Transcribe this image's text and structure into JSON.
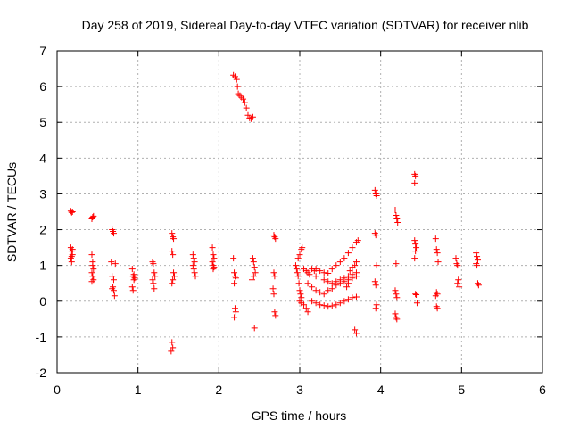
{
  "chart_data": {
    "type": "scatter",
    "title": "Day 258 of 2019, Sidereal Day-to-day VTEC variation (SDTVAR) for receiver nlib",
    "xlabel": "GPS time / hours",
    "ylabel": "SDTVAR / TECUs",
    "xlim": [
      0,
      6
    ],
    "ylim": [
      -2,
      7
    ],
    "xticks": [
      0,
      1,
      2,
      3,
      4,
      5,
      6
    ],
    "yticks": [
      -2,
      -1,
      0,
      1,
      2,
      3,
      4,
      5,
      6,
      7
    ],
    "grid": true,
    "marker": "+",
    "color": "#ff0000",
    "series": [
      {
        "name": "SDTVAR",
        "points": [
          [
            0.17,
            2.52
          ],
          [
            0.18,
            2.48
          ],
          [
            0.19,
            2.5
          ],
          [
            0.17,
            1.5
          ],
          [
            0.18,
            1.4
          ],
          [
            0.19,
            1.3
          ],
          [
            0.17,
            1.2
          ],
          [
            0.18,
            1.1
          ],
          [
            0.19,
            1.45
          ],
          [
            0.18,
            1.25
          ],
          [
            0.43,
            2.3
          ],
          [
            0.44,
            2.35
          ],
          [
            0.45,
            2.38
          ],
          [
            0.43,
            1.3
          ],
          [
            0.44,
            1.1
          ],
          [
            0.45,
            0.9
          ],
          [
            0.43,
            0.8
          ],
          [
            0.44,
            0.7
          ],
          [
            0.45,
            0.6
          ],
          [
            0.43,
            0.55
          ],
          [
            0.44,
            1.0
          ],
          [
            0.68,
            2.0
          ],
          [
            0.69,
            1.95
          ],
          [
            0.7,
            1.9
          ],
          [
            0.67,
            1.1
          ],
          [
            0.68,
            0.7
          ],
          [
            0.69,
            0.4
          ],
          [
            0.7,
            0.3
          ],
          [
            0.71,
            0.15
          ],
          [
            0.72,
            1.05
          ],
          [
            0.7,
            0.6
          ],
          [
            0.68,
            0.35
          ],
          [
            0.93,
            0.9
          ],
          [
            0.94,
            0.7
          ],
          [
            0.95,
            0.6
          ],
          [
            0.93,
            0.4
          ],
          [
            0.94,
            0.3
          ],
          [
            0.95,
            0.75
          ],
          [
            0.96,
            0.65
          ],
          [
            1.18,
            1.1
          ],
          [
            1.19,
            1.05
          ],
          [
            1.2,
            0.8
          ],
          [
            1.21,
            0.7
          ],
          [
            1.18,
            0.6
          ],
          [
            1.19,
            0.5
          ],
          [
            1.2,
            0.35
          ],
          [
            1.42,
            1.9
          ],
          [
            1.43,
            1.8
          ],
          [
            1.44,
            1.75
          ],
          [
            1.42,
            1.4
          ],
          [
            1.43,
            1.3
          ],
          [
            1.44,
            0.8
          ],
          [
            1.45,
            0.7
          ],
          [
            1.43,
            0.6
          ],
          [
            1.42,
            0.5
          ],
          [
            1.42,
            -1.15
          ],
          [
            1.43,
            -1.3
          ],
          [
            1.41,
            -1.4
          ],
          [
            1.68,
            1.3
          ],
          [
            1.69,
            1.2
          ],
          [
            1.7,
            1.1
          ],
          [
            1.68,
            1.0
          ],
          [
            1.69,
            0.9
          ],
          [
            1.7,
            0.8
          ],
          [
            1.71,
            0.7
          ],
          [
            1.92,
            1.5
          ],
          [
            1.93,
            1.3
          ],
          [
            1.94,
            1.2
          ],
          [
            1.92,
            1.1
          ],
          [
            1.93,
            1.0
          ],
          [
            1.94,
            0.95
          ],
          [
            1.93,
            0.9
          ],
          [
            2.18,
            1.2
          ],
          [
            2.19,
            0.8
          ],
          [
            2.2,
            0.7
          ],
          [
            2.21,
            0.65
          ],
          [
            2.19,
            0.5
          ],
          [
            2.2,
            -0.2
          ],
          [
            2.21,
            -0.3
          ],
          [
            2.19,
            -0.45
          ],
          [
            2.18,
            6.32
          ],
          [
            2.2,
            6.28
          ],
          [
            2.22,
            6.2
          ],
          [
            2.23,
            6.0
          ],
          [
            2.24,
            5.8
          ],
          [
            2.26,
            5.75
          ],
          [
            2.28,
            5.7
          ],
          [
            2.3,
            5.65
          ],
          [
            2.32,
            5.55
          ],
          [
            2.34,
            5.4
          ],
          [
            2.36,
            5.2
          ],
          [
            2.38,
            5.12
          ],
          [
            2.4,
            5.1
          ],
          [
            2.42,
            5.15
          ],
          [
            2.42,
            1.2
          ],
          [
            2.43,
            1.1
          ],
          [
            2.44,
            0.95
          ],
          [
            2.45,
            0.8
          ],
          [
            2.43,
            0.7
          ],
          [
            2.41,
            0.6
          ],
          [
            2.44,
            -0.75
          ],
          [
            2.68,
            1.85
          ],
          [
            2.69,
            1.8
          ],
          [
            2.7,
            1.75
          ],
          [
            2.68,
            0.8
          ],
          [
            2.69,
            0.7
          ],
          [
            2.67,
            0.35
          ],
          [
            2.68,
            0.2
          ],
          [
            2.69,
            -0.3
          ],
          [
            2.7,
            -0.4
          ],
          [
            2.95,
            1.0
          ],
          [
            2.96,
            0.9
          ],
          [
            2.97,
            0.8
          ],
          [
            2.98,
            0.7
          ],
          [
            2.99,
            0.5
          ],
          [
            3.0,
            0.3
          ],
          [
            3.01,
            0.2
          ],
          [
            3.02,
            0.1
          ],
          [
            2.98,
            1.2
          ],
          [
            3.0,
            1.3
          ],
          [
            3.02,
            1.45
          ],
          [
            3.03,
            1.5
          ],
          [
            3.05,
            0.9
          ],
          [
            3.08,
            0.85
          ],
          [
            3.1,
            0.8
          ],
          [
            3.12,
            0.75
          ],
          [
            3.15,
            0.9
          ],
          [
            3.18,
            0.85
          ],
          [
            3.2,
            0.7
          ],
          [
            3.0,
            0.0
          ],
          [
            3.02,
            -0.05
          ],
          [
            3.05,
            -0.1
          ],
          [
            3.08,
            -0.2
          ],
          [
            3.1,
            -0.3
          ],
          [
            3.15,
            0.0
          ],
          [
            3.2,
            -0.05
          ],
          [
            3.25,
            -0.1
          ],
          [
            3.3,
            -0.12
          ],
          [
            3.35,
            -0.15
          ],
          [
            3.4,
            -0.13
          ],
          [
            3.45,
            -0.1
          ],
          [
            3.5,
            -0.05
          ],
          [
            3.55,
            0.0
          ],
          [
            3.6,
            0.05
          ],
          [
            3.65,
            0.1
          ],
          [
            3.7,
            0.12
          ],
          [
            3.1,
            0.5
          ],
          [
            3.15,
            0.4
          ],
          [
            3.2,
            0.3
          ],
          [
            3.25,
            0.25
          ],
          [
            3.3,
            0.2
          ],
          [
            3.35,
            0.3
          ],
          [
            3.4,
            0.35
          ],
          [
            3.45,
            0.45
          ],
          [
            3.5,
            0.5
          ],
          [
            3.55,
            0.55
          ],
          [
            3.6,
            0.6
          ],
          [
            3.65,
            0.65
          ],
          [
            3.7,
            0.7
          ],
          [
            3.2,
            0.9
          ],
          [
            3.25,
            0.85
          ],
          [
            3.3,
            0.8
          ],
          [
            3.35,
            0.78
          ],
          [
            3.4,
            0.9
          ],
          [
            3.45,
            1.0
          ],
          [
            3.5,
            1.1
          ],
          [
            3.55,
            1.2
          ],
          [
            3.6,
            1.35
          ],
          [
            3.65,
            1.5
          ],
          [
            3.7,
            1.65
          ],
          [
            3.72,
            1.7
          ],
          [
            3.3,
            0.6
          ],
          [
            3.35,
            0.55
          ],
          [
            3.4,
            0.5
          ],
          [
            3.45,
            0.55
          ],
          [
            3.5,
            0.6
          ],
          [
            3.55,
            0.65
          ],
          [
            3.6,
            0.7
          ],
          [
            3.65,
            0.75
          ],
          [
            3.7,
            0.8
          ],
          [
            3.58,
            0.4
          ],
          [
            3.6,
            0.5
          ],
          [
            3.62,
            0.85
          ],
          [
            3.65,
            0.95
          ],
          [
            3.68,
            1.0
          ],
          [
            3.7,
            1.1
          ],
          [
            3.68,
            -0.8
          ],
          [
            3.7,
            -0.9
          ],
          [
            3.93,
            3.1
          ],
          [
            3.94,
            3.0
          ],
          [
            3.95,
            2.95
          ],
          [
            3.93,
            1.9
          ],
          [
            3.94,
            1.85
          ],
          [
            3.95,
            1.0
          ],
          [
            3.93,
            0.55
          ],
          [
            3.94,
            0.45
          ],
          [
            3.95,
            -0.1
          ],
          [
            3.94,
            -0.2
          ],
          [
            4.18,
            2.55
          ],
          [
            4.19,
            2.4
          ],
          [
            4.2,
            2.3
          ],
          [
            4.21,
            2.2
          ],
          [
            4.19,
            1.05
          ],
          [
            4.18,
            0.3
          ],
          [
            4.19,
            0.2
          ],
          [
            4.2,
            0.1
          ],
          [
            4.18,
            -0.35
          ],
          [
            4.19,
            -0.45
          ],
          [
            4.2,
            -0.5
          ],
          [
            4.42,
            3.55
          ],
          [
            4.43,
            3.5
          ],
          [
            4.42,
            3.3
          ],
          [
            4.42,
            1.7
          ],
          [
            4.43,
            1.6
          ],
          [
            4.44,
            1.5
          ],
          [
            4.43,
            1.4
          ],
          [
            4.42,
            1.2
          ],
          [
            4.43,
            0.2
          ],
          [
            4.44,
            0.18
          ],
          [
            4.45,
            -0.05
          ],
          [
            4.68,
            1.75
          ],
          [
            4.69,
            1.45
          ],
          [
            4.7,
            1.35
          ],
          [
            4.71,
            1.1
          ],
          [
            4.69,
            0.25
          ],
          [
            4.7,
            0.2
          ],
          [
            4.68,
            0.15
          ],
          [
            4.69,
            -0.15
          ],
          [
            4.7,
            -0.2
          ],
          [
            4.93,
            1.2
          ],
          [
            4.94,
            1.05
          ],
          [
            4.95,
            1.0
          ],
          [
            4.96,
            0.6
          ],
          [
            4.95,
            0.5
          ],
          [
            4.97,
            0.4
          ],
          [
            5.18,
            1.35
          ],
          [
            5.19,
            1.25
          ],
          [
            5.2,
            1.15
          ],
          [
            5.18,
            1.05
          ],
          [
            5.19,
            1.0
          ],
          [
            5.2,
            0.5
          ],
          [
            5.21,
            0.45
          ]
        ]
      }
    ]
  }
}
